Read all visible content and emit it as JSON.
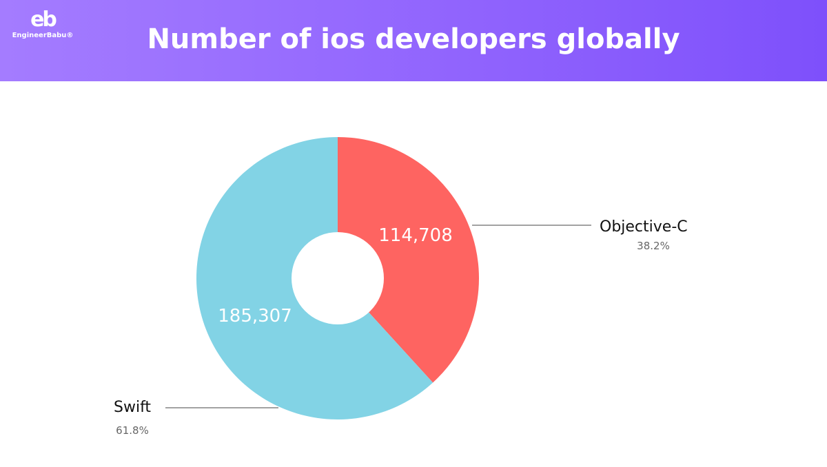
{
  "header": {
    "logo_text": "EngineerBabu®",
    "logo_mark": "eb",
    "title": "Number of ios developers globally"
  },
  "chart_data": {
    "type": "pie",
    "donut": true,
    "title": "Number of ios developers globally",
    "slices": [
      {
        "label": "Objective-C",
        "value": 114708,
        "value_label": "114,708",
        "percent": "38.2%",
        "color": "#fe6461"
      },
      {
        "label": "Swift",
        "value": 185307,
        "value_label": "185,307",
        "percent": "61.8%",
        "color": "#82d3e5"
      }
    ]
  }
}
